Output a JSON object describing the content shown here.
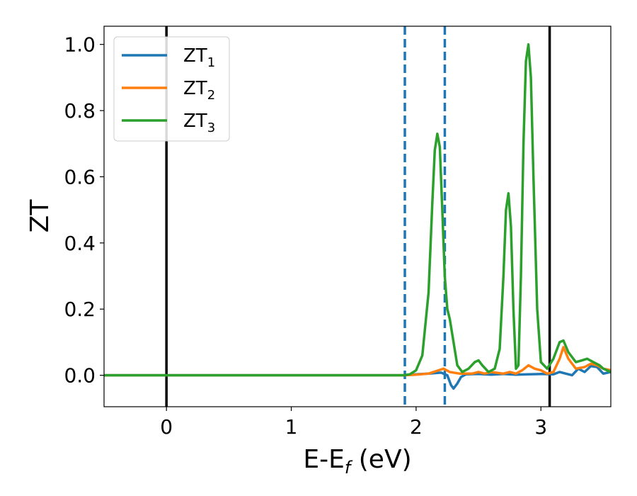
{
  "chart_data": {
    "type": "line",
    "xlabel": "E-E",
    "xlabel_sub": "f",
    "xlabel_unit": " (eV)",
    "ylabel": "ZT",
    "xlim": [
      -0.5,
      3.56
    ],
    "ylim": [
      -0.095,
      1.055
    ],
    "xticks": [
      0,
      1,
      2,
      3
    ],
    "xtick_labels": [
      "0",
      "1",
      "2",
      "3"
    ],
    "yticks": [
      0.0,
      0.2,
      0.4,
      0.6,
      0.8,
      1.0
    ],
    "ytick_labels": [
      "0.0",
      "0.2",
      "0.4",
      "0.6",
      "0.8",
      "1.0"
    ],
    "grid": false,
    "legend_position": "top-left",
    "vertical_lines": [
      {
        "x": 0.0,
        "style": "solid",
        "color": "#000000"
      },
      {
        "x": 3.07,
        "style": "solid",
        "color": "#000000"
      },
      {
        "x": 1.91,
        "style": "dashed",
        "color": "#1f77b4"
      },
      {
        "x": 2.23,
        "style": "dashed",
        "color": "#1f77b4"
      }
    ],
    "series": [
      {
        "name": "ZT",
        "name_sub": "1",
        "color": "#1f77b4",
        "x": [
          -0.5,
          1.9,
          2.0,
          2.1,
          2.2,
          2.25,
          2.28,
          2.3,
          2.33,
          2.36,
          2.4,
          2.5,
          2.6,
          2.7,
          2.8,
          2.9,
          3.0,
          3.1,
          3.15,
          3.2,
          3.25,
          3.3,
          3.35,
          3.4,
          3.45,
          3.5,
          3.56
        ],
        "y": [
          0.0,
          0.0,
          0.003,
          0.005,
          0.008,
          0.0,
          -0.03,
          -0.04,
          -0.025,
          -0.005,
          0.003,
          0.004,
          0.002,
          0.004,
          0.002,
          0.003,
          0.004,
          0.003,
          0.01,
          0.005,
          0.0,
          0.02,
          0.01,
          0.028,
          0.025,
          0.005,
          0.01
        ]
      },
      {
        "name": "ZT",
        "name_sub": "2",
        "color": "#ff7f0e",
        "x": [
          -0.5,
          1.9,
          2.0,
          2.1,
          2.18,
          2.22,
          2.27,
          2.35,
          2.45,
          2.5,
          2.55,
          2.6,
          2.7,
          2.75,
          2.8,
          2.85,
          2.9,
          2.95,
          3.0,
          3.05,
          3.1,
          3.15,
          3.18,
          3.22,
          3.28,
          3.35,
          3.4,
          3.45,
          3.5,
          3.56
        ],
        "y": [
          0.0,
          0.0,
          0.002,
          0.005,
          0.015,
          0.02,
          0.01,
          0.005,
          0.005,
          0.01,
          0.005,
          0.01,
          0.005,
          0.01,
          0.005,
          0.015,
          0.03,
          0.02,
          0.015,
          0.005,
          0.01,
          0.05,
          0.085,
          0.05,
          0.02,
          0.025,
          0.035,
          0.03,
          0.02,
          0.015
        ]
      },
      {
        "name": "ZT",
        "name_sub": "3",
        "color": "#2ca02c",
        "x": [
          -0.5,
          1.9,
          1.95,
          2.0,
          2.05,
          2.1,
          2.13,
          2.15,
          2.17,
          2.19,
          2.21,
          2.23,
          2.25,
          2.27,
          2.3,
          2.33,
          2.37,
          2.42,
          2.47,
          2.5,
          2.53,
          2.58,
          2.63,
          2.67,
          2.7,
          2.72,
          2.74,
          2.76,
          2.78,
          2.8,
          2.82,
          2.84,
          2.86,
          2.88,
          2.9,
          2.92,
          2.94,
          2.97,
          3.0,
          3.05,
          3.1,
          3.15,
          3.18,
          3.22,
          3.28,
          3.33,
          3.37,
          3.42,
          3.47,
          3.5,
          3.56
        ],
        "y": [
          0.0,
          0.0,
          0.003,
          0.015,
          0.06,
          0.25,
          0.52,
          0.68,
          0.73,
          0.69,
          0.5,
          0.3,
          0.2,
          0.17,
          0.1,
          0.03,
          0.01,
          0.02,
          0.04,
          0.045,
          0.03,
          0.01,
          0.02,
          0.08,
          0.3,
          0.5,
          0.55,
          0.45,
          0.2,
          0.02,
          0.03,
          0.3,
          0.7,
          0.95,
          1.0,
          0.9,
          0.6,
          0.2,
          0.04,
          0.02,
          0.05,
          0.1,
          0.105,
          0.07,
          0.04,
          0.045,
          0.05,
          0.04,
          0.03,
          0.02,
          0.01
        ]
      }
    ]
  }
}
